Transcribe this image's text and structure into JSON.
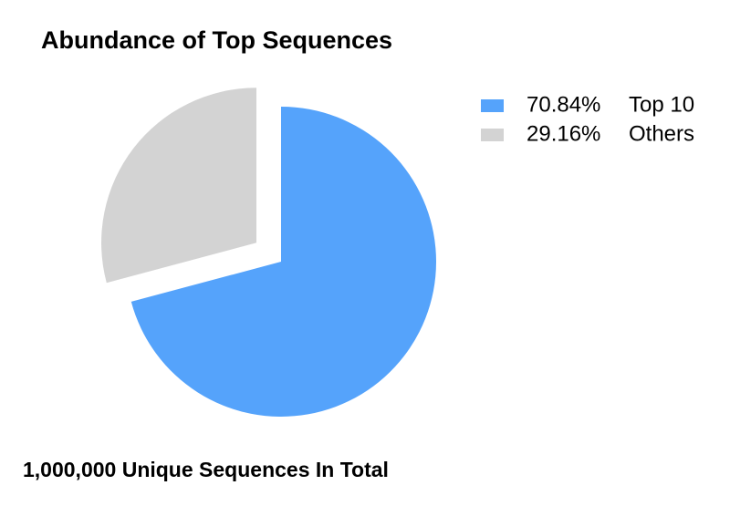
{
  "chart_data": {
    "type": "pie",
    "title": "Abundance of Top Sequences",
    "footnote": "1,000,000 Unique Sequences In Total",
    "categories": [
      "Top 10",
      "Others"
    ],
    "values": [
      70.84,
      29.16
    ],
    "value_labels": [
      "70.84%",
      "29.16%"
    ],
    "colors": [
      "#55a3fb",
      "#d3d3d3"
    ],
    "explode": [
      false,
      true
    ],
    "legend": "right"
  }
}
